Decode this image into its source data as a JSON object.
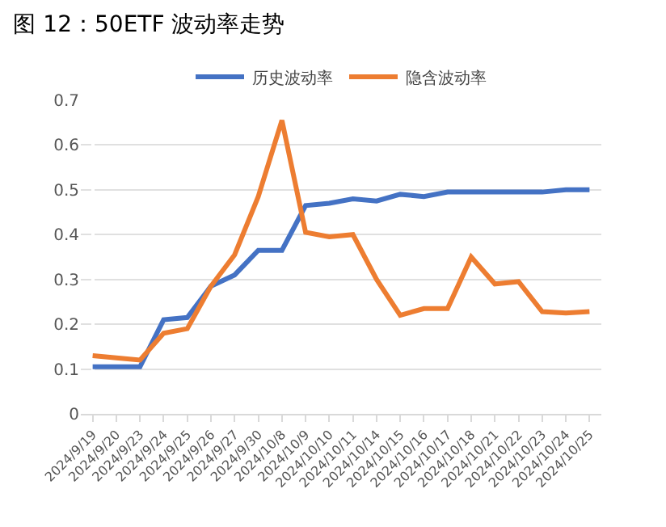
{
  "chart_data": {
    "type": "line",
    "title": "图 12：50ETF 波动率走势",
    "categories": [
      "2024/9/19",
      "2024/9/20",
      "2024/9/23",
      "2024/9/24",
      "2024/9/25",
      "2024/9/26",
      "2024/9/27",
      "2024/9/30",
      "2024/10/8",
      "2024/10/9",
      "2024/10/10",
      "2024/10/11",
      "2024/10/14",
      "2024/10/15",
      "2024/10/16",
      "2024/10/17",
      "2024/10/18",
      "2024/10/21",
      "2024/10/22",
      "2024/10/23",
      "2024/10/24",
      "2024/10/25"
    ],
    "series": [
      {
        "name": "历史波动率",
        "color": "#4472c4",
        "values": [
          0.105,
          0.105,
          0.105,
          0.21,
          0.215,
          0.285,
          0.31,
          0.365,
          0.365,
          0.465,
          0.47,
          0.48,
          0.475,
          0.49,
          0.485,
          0.495,
          0.495,
          0.495,
          0.495,
          0.495,
          0.5,
          0.5
        ]
      },
      {
        "name": "隐含波动率",
        "color": "#ed7d31",
        "values": [
          0.13,
          0.125,
          0.12,
          0.18,
          0.19,
          0.285,
          0.355,
          0.485,
          0.655,
          0.405,
          0.395,
          0.4,
          0.3,
          0.22,
          0.235,
          0.235,
          0.35,
          0.29,
          0.295,
          0.228,
          0.225,
          0.228
        ]
      }
    ],
    "ylim": [
      0,
      0.7
    ],
    "yticks": [
      0,
      0.1,
      0.2,
      0.3,
      0.4,
      0.5,
      0.6,
      0.7
    ],
    "grid": "y",
    "legend": "top",
    "marker": "none",
    "line_style": "solid"
  }
}
